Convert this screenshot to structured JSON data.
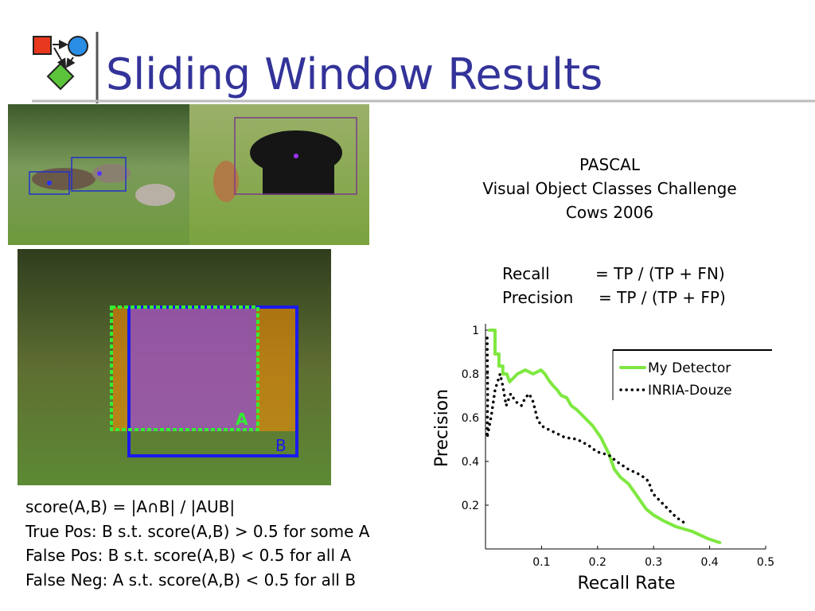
{
  "title": "Sliding Window Results",
  "pascal": [
    "PASCAL",
    "Visual Object Classes Challenge",
    "Cows 2006"
  ],
  "formulas": [
    [
      "Recall",
      "= TP / (TP + FN)"
    ],
    [
      "Precision",
      "= TP / (TP + FP)"
    ]
  ],
  "box_labels": [
    "A",
    "B"
  ],
  "score_lines": [
    "score(A,B) = |A∩B| / |AUB|",
    "True Pos:  B s.t. score(A,B) > 0.5 for some A",
    "False Pos: B s.t. score(A,B) < 0.5 for all A",
    "False Neg:  A s.t. score(A,B) < 0.5 for all B"
  ],
  "chart_data": {
    "type": "line",
    "xlabel": "Recall Rate",
    "ylabel": "Precision",
    "xlim": [
      0,
      0.5
    ],
    "ylim": [
      0,
      1
    ],
    "xticks": [
      0.1,
      0.2,
      0.3,
      0.4,
      0.5
    ],
    "yticks": [
      0.2,
      0.4,
      0.6,
      0.8,
      1
    ],
    "legend": "upper right",
    "series": [
      {
        "name": "My Detector",
        "color": "#7ee840",
        "style": "solid",
        "x": [
          0.007,
          0.017,
          0.017,
          0.024,
          0.024,
          0.031,
          0.031,
          0.038,
          0.043,
          0.057,
          0.071,
          0.085,
          0.099,
          0.106,
          0.113,
          0.121,
          0.128,
          0.135,
          0.145,
          0.153,
          0.163,
          0.177,
          0.191,
          0.206,
          0.22,
          0.23,
          0.241,
          0.255,
          0.267,
          0.277,
          0.287,
          0.301,
          0.319,
          0.34,
          0.369,
          0.397,
          0.418
        ],
        "values": [
          1.0,
          1.0,
          0.891,
          0.891,
          0.836,
          0.836,
          0.8,
          0.8,
          0.764,
          0.8,
          0.818,
          0.8,
          0.818,
          0.8,
          0.771,
          0.745,
          0.727,
          0.702,
          0.691,
          0.655,
          0.636,
          0.6,
          0.564,
          0.509,
          0.436,
          0.364,
          0.327,
          0.298,
          0.255,
          0.218,
          0.182,
          0.153,
          0.127,
          0.102,
          0.08,
          0.047,
          0.029
        ]
      },
      {
        "name": "INRIA-Douze",
        "color": "#000000",
        "style": "dotted",
        "x": [
          0.003,
          0.004,
          0.003,
          0.011,
          0.017,
          0.026,
          0.031,
          0.037,
          0.045,
          0.054,
          0.064,
          0.071,
          0.078,
          0.085,
          0.092,
          0.099,
          0.113,
          0.128,
          0.142,
          0.163,
          0.184,
          0.199,
          0.22,
          0.234,
          0.255,
          0.277,
          0.291,
          0.298,
          0.312,
          0.326,
          0.34,
          0.357
        ],
        "values": [
          0.964,
          0.691,
          0.509,
          0.618,
          0.727,
          0.8,
          0.745,
          0.655,
          0.709,
          0.673,
          0.655,
          0.691,
          0.709,
          0.673,
          0.6,
          0.564,
          0.545,
          0.527,
          0.509,
          0.502,
          0.473,
          0.444,
          0.429,
          0.4,
          0.364,
          0.338,
          0.309,
          0.255,
          0.218,
          0.182,
          0.145,
          0.116
        ]
      }
    ]
  }
}
